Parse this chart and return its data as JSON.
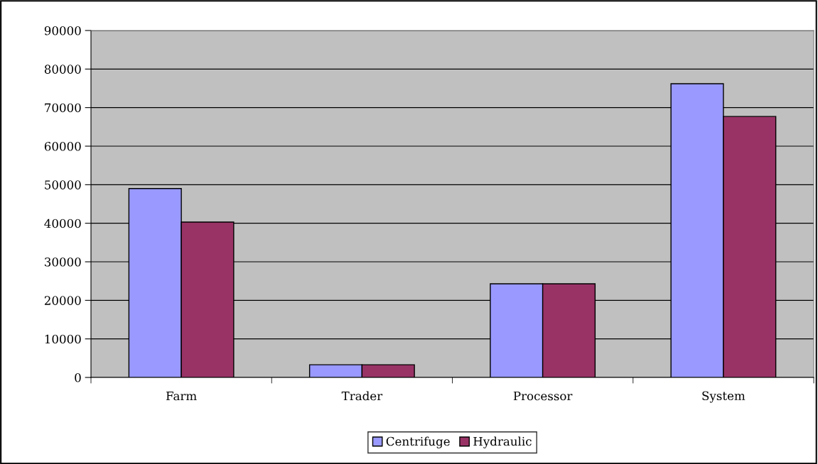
{
  "chart_data": {
    "type": "bar",
    "categories": [
      "Farm",
      "Trader",
      "Processor",
      "System"
    ],
    "series": [
      {
        "name": "Centrifuge",
        "color": "#9999ff",
        "values": [
          49000,
          3300,
          24300,
          76200
        ]
      },
      {
        "name": "Hydraulic",
        "color": "#993366",
        "values": [
          40300,
          3300,
          24300,
          67700
        ]
      }
    ],
    "ylim": [
      0,
      90000
    ],
    "yticks": [
      0,
      10000,
      20000,
      30000,
      40000,
      50000,
      60000,
      70000,
      80000,
      90000
    ],
    "grid": "y",
    "legend": "bottom"
  }
}
